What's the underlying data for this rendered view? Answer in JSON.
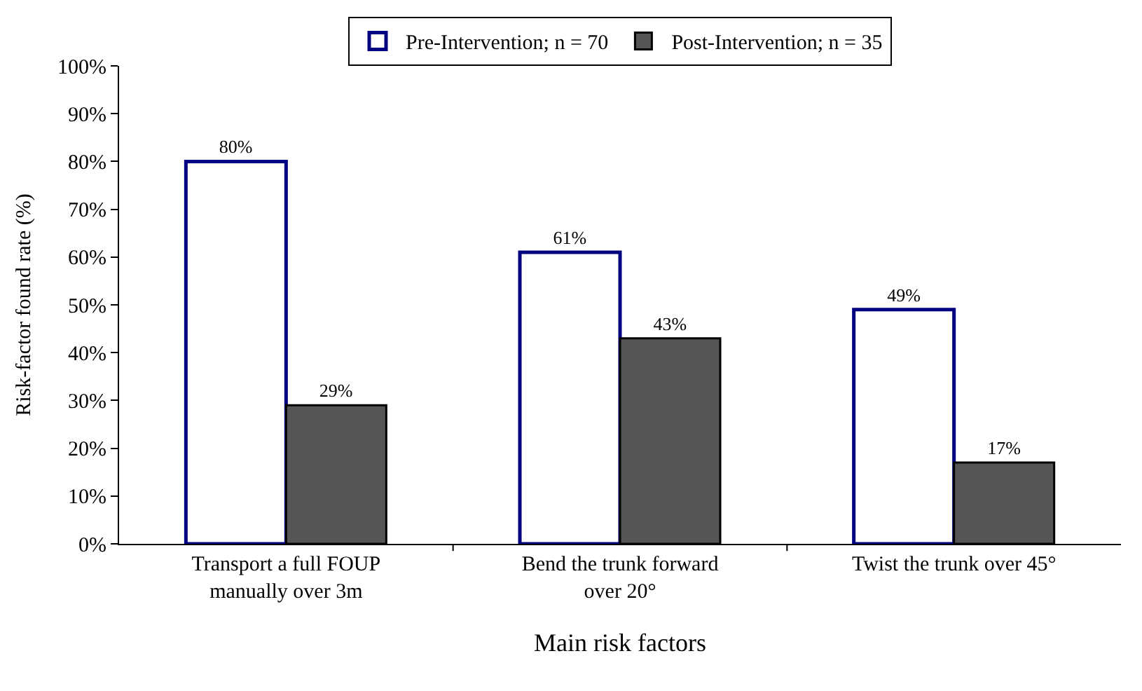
{
  "chart_data": {
    "type": "bar",
    "xlabel": "Main risk factors",
    "ylabel": "Risk-factor found rate (%)",
    "categories": [
      "Transport a full FOUP manually over 3m",
      "Bend the trunk forward over 20°",
      "Twist the trunk over 45°"
    ],
    "series": [
      {
        "name": "Pre-Intervention; n = 70",
        "color": "#000080",
        "values": [
          80,
          61,
          49
        ],
        "value_labels": [
          "80%",
          "61%",
          "49%"
        ]
      },
      {
        "name": "Post-Intervention; n = 35",
        "color": "#555555",
        "values": [
          29,
          43,
          17
        ],
        "value_labels": [
          "29%",
          "43%",
          "17%"
        ]
      }
    ],
    "ylim": [
      0,
      100
    ],
    "yticks": [
      {
        "value": 0,
        "label": "0%"
      },
      {
        "value": 10,
        "label": "10%"
      },
      {
        "value": 20,
        "label": "20%"
      },
      {
        "value": 30,
        "label": "30%"
      },
      {
        "value": 40,
        "label": "40%"
      },
      {
        "value": 50,
        "label": "50%"
      },
      {
        "value": 60,
        "label": "60%"
      },
      {
        "value": 70,
        "label": "70%"
      },
      {
        "value": 80,
        "label": "80%"
      },
      {
        "value": 90,
        "label": "90%"
      },
      {
        "value": 100,
        "label": "100%"
      }
    ],
    "legend": "top"
  }
}
